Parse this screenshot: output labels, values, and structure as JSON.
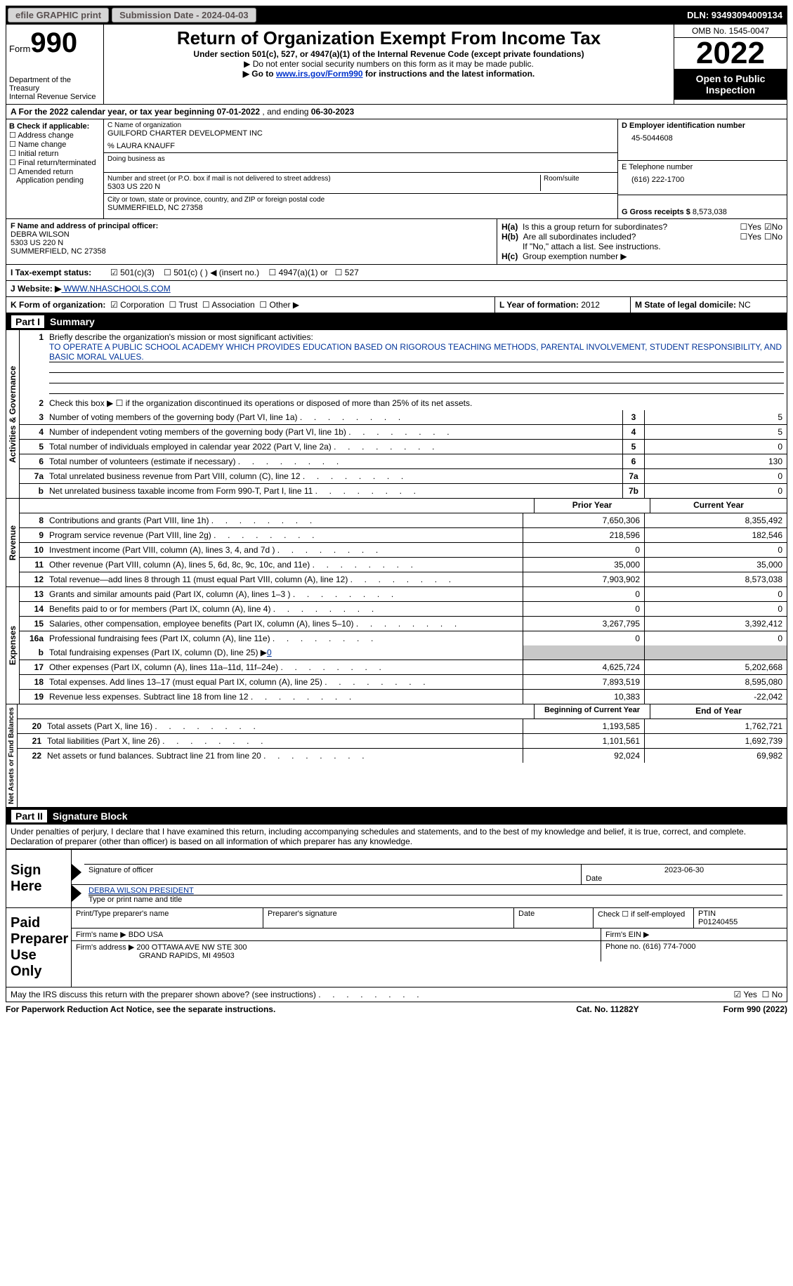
{
  "topbar": {
    "efile": "efile GRAPHIC print",
    "sub_label": "Submission Date - ",
    "sub_date": "2024-04-03",
    "dln": "DLN: 93493094009134"
  },
  "header": {
    "form_word": "Form",
    "form_num": "990",
    "dept": "Department of the Treasury",
    "irs": "Internal Revenue Service",
    "title": "Return of Organization Exempt From Income Tax",
    "sub1": "Under section 501(c), 527, or 4947(a)(1) of the Internal Revenue Code (except private foundations)",
    "sub2": "▶ Do not enter social security numbers on this form as it may be made public.",
    "sub3_a": "▶ Go to ",
    "sub3_link": "www.irs.gov/Form990",
    "sub3_b": " for instructions and the latest information.",
    "omb": "OMB No. 1545-0047",
    "year": "2022",
    "open": "Open to Public Inspection"
  },
  "rowA": {
    "text_a": "A For the 2022 calendar year, or tax year beginning ",
    "begin": "07-01-2022",
    "mid": " , and ending ",
    "end": "06-30-2023"
  },
  "B": {
    "label": "B Check if applicable:",
    "opts": [
      "Address change",
      "Name change",
      "Initial return",
      "Final return/terminated",
      "Amended return",
      "Application pending"
    ]
  },
  "C": {
    "name_label": "C Name of organization",
    "name": "GUILFORD CHARTER DEVELOPMENT INC",
    "care": "% LAURA KNAUFF",
    "dba_label": "Doing business as",
    "addr_label": "Number and street (or P.O. box if mail is not delivered to street address)",
    "room_label": "Room/suite",
    "addr": "5303 US 220 N",
    "city_label": "City or town, state or province, country, and ZIP or foreign postal code",
    "city": "SUMMERFIELD, NC 27358"
  },
  "D": {
    "label": "D Employer identification number",
    "val": "45-5044608"
  },
  "E": {
    "label": "E Telephone number",
    "val": "(616) 222-1700"
  },
  "G": {
    "label": "G Gross receipts $ ",
    "val": "8,573,038"
  },
  "F": {
    "label": "F Name and address of principal officer:",
    "name": "DEBRA WILSON",
    "addr1": "5303 US 220 N",
    "addr2": "SUMMERFIELD, NC 27358"
  },
  "H": {
    "a": "Is this a group return for subordinates?",
    "b": "Are all subordinates included?",
    "b_note": "If \"No,\" attach a list. See instructions.",
    "c": "Group exemption number ▶"
  },
  "I": {
    "label": "I    Tax-exempt status:",
    "o1": "501(c)(3)",
    "o2": "501(c) (  ) ◀ (insert no.)",
    "o3": "4947(a)(1) or",
    "o4": "527"
  },
  "J": {
    "label": "J    Website: ▶",
    "val": " WWW.NHASCHOOLS.COM"
  },
  "K": {
    "label": "K Form of organization:",
    "o1": "Corporation",
    "o2": "Trust",
    "o3": "Association",
    "o4": "Other ▶"
  },
  "L": {
    "label": "L Year of formation: ",
    "val": "2012"
  },
  "M": {
    "label": "M State of legal domicile: ",
    "val": "NC"
  },
  "partI": {
    "label": "Part I",
    "title": "Summary"
  },
  "gov": {
    "label": "Activities & Governance",
    "line1_label": "Briefly describe the organization's mission or most significant activities:",
    "mission": "TO OPERATE A PUBLIC SCHOOL ACADEMY WHICH PROVIDES EDUCATION BASED ON RIGOROUS TEACHING METHODS, PARENTAL INVOLVEMENT, STUDENT RESPONSIBILITY, AND BASIC MORAL VALUES.",
    "line2": "Check this box ▶ ☐ if the organization discontinued its operations or disposed of more than 25% of its net assets.",
    "rows": [
      {
        "n": "3",
        "d": "Number of voting members of the governing body (Part VI, line 1a)",
        "b": "3",
        "v": "5"
      },
      {
        "n": "4",
        "d": "Number of independent voting members of the governing body (Part VI, line 1b)",
        "b": "4",
        "v": "5"
      },
      {
        "n": "5",
        "d": "Total number of individuals employed in calendar year 2022 (Part V, line 2a)",
        "b": "5",
        "v": "0"
      },
      {
        "n": "6",
        "d": "Total number of volunteers (estimate if necessary)",
        "b": "6",
        "v": "130"
      },
      {
        "n": "7a",
        "d": "Total unrelated business revenue from Part VIII, column (C), line 12",
        "b": "7a",
        "v": "0"
      },
      {
        "n": "b",
        "d": "Net unrelated business taxable income from Form 990-T, Part I, line 11",
        "b": "7b",
        "v": "0"
      }
    ]
  },
  "cols": {
    "prior": "Prior Year",
    "current": "Current Year",
    "beg": "Beginning of Current Year",
    "end": "End of Year"
  },
  "rev": {
    "label": "Revenue",
    "rows": [
      {
        "n": "8",
        "d": "Contributions and grants (Part VIII, line 1h)",
        "p": "7,650,306",
        "c": "8,355,492"
      },
      {
        "n": "9",
        "d": "Program service revenue (Part VIII, line 2g)",
        "p": "218,596",
        "c": "182,546"
      },
      {
        "n": "10",
        "d": "Investment income (Part VIII, column (A), lines 3, 4, and 7d )",
        "p": "0",
        "c": "0"
      },
      {
        "n": "11",
        "d": "Other revenue (Part VIII, column (A), lines 5, 6d, 8c, 9c, 10c, and 11e)",
        "p": "35,000",
        "c": "35,000"
      },
      {
        "n": "12",
        "d": "Total revenue—add lines 8 through 11 (must equal Part VIII, column (A), line 12)",
        "p": "7,903,902",
        "c": "8,573,038"
      }
    ]
  },
  "exp": {
    "label": "Expenses",
    "rows": [
      {
        "n": "13",
        "d": "Grants and similar amounts paid (Part IX, column (A), lines 1–3 )",
        "p": "0",
        "c": "0"
      },
      {
        "n": "14",
        "d": "Benefits paid to or for members (Part IX, column (A), line 4)",
        "p": "0",
        "c": "0"
      },
      {
        "n": "15",
        "d": "Salaries, other compensation, employee benefits (Part IX, column (A), lines 5–10)",
        "p": "3,267,795",
        "c": "3,392,412"
      },
      {
        "n": "16a",
        "d": "Professional fundraising fees (Part IX, column (A), line 11e)",
        "p": "0",
        "c": "0"
      }
    ],
    "line_b": "Total fundraising expenses (Part IX, column (D), line 25) ▶",
    "line_b_val": "0",
    "rows2": [
      {
        "n": "17",
        "d": "Other expenses (Part IX, column (A), lines 11a–11d, 11f–24e)",
        "p": "4,625,724",
        "c": "5,202,668"
      },
      {
        "n": "18",
        "d": "Total expenses. Add lines 13–17 (must equal Part IX, column (A), line 25)",
        "p": "7,893,519",
        "c": "8,595,080"
      },
      {
        "n": "19",
        "d": "Revenue less expenses. Subtract line 18 from line 12",
        "p": "10,383",
        "c": "-22,042"
      }
    ]
  },
  "net": {
    "label": "Net Assets or Fund Balances",
    "rows": [
      {
        "n": "20",
        "d": "Total assets (Part X, line 16)",
        "p": "1,193,585",
        "c": "1,762,721"
      },
      {
        "n": "21",
        "d": "Total liabilities (Part X, line 26)",
        "p": "1,101,561",
        "c": "1,692,739"
      },
      {
        "n": "22",
        "d": "Net assets or fund balances. Subtract line 21 from line 20",
        "p": "92,024",
        "c": "69,982"
      }
    ]
  },
  "partII": {
    "label": "Part II",
    "title": "Signature Block"
  },
  "sig": {
    "penalty": "Under penalties of perjury, I declare that I have examined this return, including accompanying schedules and statements, and to the best of my knowledge and belief, it is true, correct, and complete. Declaration of preparer (other than officer) is based on all information of which preparer has any knowledge.",
    "sign_here": "Sign Here",
    "sig_officer": "Signature of officer",
    "sig_date": "2023-06-30",
    "date_label": "Date",
    "officer_name": "DEBRA WILSON PRESIDENT",
    "type_name": "Type or print name and title",
    "paid": "Paid Preparer Use Only",
    "prep_name_label": "Print/Type preparer's name",
    "prep_sig_label": "Preparer's signature",
    "check_self": "Check ☐ if self-employed",
    "ptin_label": "PTIN",
    "ptin": "P01240455",
    "firm_label": "Firm's name   ▶ ",
    "firm": "BDO USA",
    "firm_ein_label": "Firm's EIN ▶",
    "firm_addr_label": "Firm's address ▶ ",
    "firm_addr1": "200 OTTAWA AVE NW STE 300",
    "firm_addr2": "GRAND RAPIDS, MI 49503",
    "phone_label": "Phone no. ",
    "phone": "(616) 774-7000",
    "may_irs": "May the IRS discuss this return with the preparer shown above? (see instructions)"
  },
  "footer": {
    "left": "For Paperwork Reduction Act Notice, see the separate instructions.",
    "mid": "Cat. No. 11282Y",
    "right": "Form 990 (2022)"
  }
}
